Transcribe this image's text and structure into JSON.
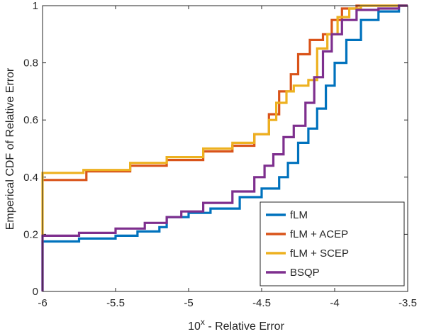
{
  "chart_data": {
    "type": "line",
    "step": true,
    "xlabel": "10",
    "xlabel_sup": "x",
    "xlabel_rest": " - Relative Error",
    "ylabel": "Emperical CDF of Relative Error",
    "xlim": [
      -6,
      -3.5
    ],
    "ylim": [
      0,
      1
    ],
    "xticks": [
      "-6",
      "-5.5",
      "-5",
      "-4.5",
      "-4",
      "-3.5"
    ],
    "xtick_values": [
      -6,
      -5.5,
      -5,
      -4.5,
      -4,
      -3.5
    ],
    "yticks": [
      "0",
      "0.2",
      "0.4",
      "0.6",
      "0.8",
      "1"
    ],
    "ytick_values": [
      0,
      0.2,
      0.4,
      0.6,
      0.8,
      1
    ],
    "grid": false,
    "legend_position": "bottom-right",
    "series": [
      {
        "name": "fLM",
        "color": "#0072BD",
        "points": [
          [
            -6,
            0
          ],
          [
            -6,
            0.175
          ],
          [
            -5.75,
            0.185
          ],
          [
            -5.5,
            0.195
          ],
          [
            -5.35,
            0.21
          ],
          [
            -5.2,
            0.225
          ],
          [
            -5.15,
            0.26
          ],
          [
            -5.0,
            0.275
          ],
          [
            -4.85,
            0.29
          ],
          [
            -4.65,
            0.33
          ],
          [
            -4.5,
            0.36
          ],
          [
            -4.38,
            0.4
          ],
          [
            -4.32,
            0.45
          ],
          [
            -4.25,
            0.52
          ],
          [
            -4.18,
            0.57
          ],
          [
            -4.12,
            0.64
          ],
          [
            -4.06,
            0.72
          ],
          [
            -4.0,
            0.8
          ],
          [
            -3.92,
            0.88
          ],
          [
            -3.82,
            0.95
          ],
          [
            -3.7,
            0.98
          ],
          [
            -3.56,
            1.0
          ],
          [
            -3.5,
            1.0
          ]
        ]
      },
      {
        "name": "fLM + ACEP",
        "color": "#D95319",
        "points": [
          [
            -6,
            0.39
          ],
          [
            -5.72,
            0.39
          ],
          [
            -5.7,
            0.42
          ],
          [
            -5.4,
            0.44
          ],
          [
            -5.15,
            0.46
          ],
          [
            -4.9,
            0.49
          ],
          [
            -4.7,
            0.51
          ],
          [
            -4.55,
            0.55
          ],
          [
            -4.45,
            0.62
          ],
          [
            -4.38,
            0.7
          ],
          [
            -4.3,
            0.76
          ],
          [
            -4.25,
            0.83
          ],
          [
            -4.17,
            0.88
          ],
          [
            -4.08,
            0.9
          ],
          [
            -4.02,
            0.95
          ],
          [
            -3.95,
            0.99
          ],
          [
            -3.85,
            1.0
          ],
          [
            -3.5,
            1.0
          ]
        ]
      },
      {
        "name": "fLM + SCEP",
        "color": "#EDB120",
        "points": [
          [
            -6,
            0.19
          ],
          [
            -6,
            0.415
          ],
          [
            -5.72,
            0.425
          ],
          [
            -5.4,
            0.45
          ],
          [
            -5.15,
            0.47
          ],
          [
            -4.9,
            0.5
          ],
          [
            -4.7,
            0.52
          ],
          [
            -4.55,
            0.55
          ],
          [
            -4.45,
            0.6
          ],
          [
            -4.4,
            0.66
          ],
          [
            -4.33,
            0.7
          ],
          [
            -4.28,
            0.72
          ],
          [
            -4.18,
            0.74
          ],
          [
            -4.12,
            0.85
          ],
          [
            -4.05,
            0.9
          ],
          [
            -3.98,
            0.96
          ],
          [
            -3.9,
            0.99
          ],
          [
            -3.82,
            1.0
          ],
          [
            -3.5,
            1.0
          ]
        ]
      },
      {
        "name": "BSQP",
        "color": "#7E2F8E",
        "points": [
          [
            -6,
            0
          ],
          [
            -6,
            0.195
          ],
          [
            -5.75,
            0.205
          ],
          [
            -5.5,
            0.22
          ],
          [
            -5.3,
            0.24
          ],
          [
            -5.15,
            0.26
          ],
          [
            -5.05,
            0.28
          ],
          [
            -4.9,
            0.31
          ],
          [
            -4.7,
            0.35
          ],
          [
            -4.55,
            0.4
          ],
          [
            -4.48,
            0.44
          ],
          [
            -4.42,
            0.48
          ],
          [
            -4.35,
            0.54
          ],
          [
            -4.28,
            0.58
          ],
          [
            -4.2,
            0.66
          ],
          [
            -4.14,
            0.75
          ],
          [
            -4.08,
            0.84
          ],
          [
            -4.02,
            0.9
          ],
          [
            -3.95,
            0.95
          ],
          [
            -3.85,
            0.985
          ],
          [
            -3.7,
            0.99
          ],
          [
            -3.56,
            1.0
          ],
          [
            -3.5,
            1.0
          ]
        ]
      }
    ]
  }
}
